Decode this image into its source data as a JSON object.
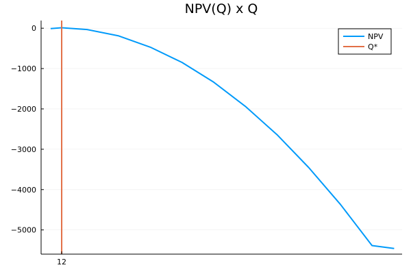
{
  "chart_data": {
    "type": "line",
    "title": "NPV(Q) x Q",
    "xlabel": "",
    "ylabel": "",
    "xlim": [
      5.5,
      119.5
    ],
    "ylim": [
      -5600,
      190
    ],
    "x_ticks": [
      12
    ],
    "y_ticks": [
      0,
      -1000,
      -2000,
      -3000,
      -4000,
      -5000
    ],
    "x_tick_labels": [
      "12"
    ],
    "y_tick_labels": [
      "0",
      "−1000",
      "−2000",
      "−3000",
      "−4000",
      "−5000"
    ],
    "grid": true,
    "legend_position": "top-right",
    "series": [
      {
        "name": "NPV",
        "color": "#009AFA",
        "x": [
          8.5,
          12,
          20,
          30,
          40,
          50,
          60,
          70,
          80,
          90,
          100,
          110,
          117
        ],
        "y": [
          -11,
          11,
          -32,
          -191,
          -470,
          -848,
          -1336,
          -1937,
          -2639,
          -3452,
          -4366,
          -5387,
          -5460
        ]
      },
      {
        "name": "Q*",
        "color": "#E26F46",
        "type": "vline",
        "x": 12
      }
    ]
  }
}
